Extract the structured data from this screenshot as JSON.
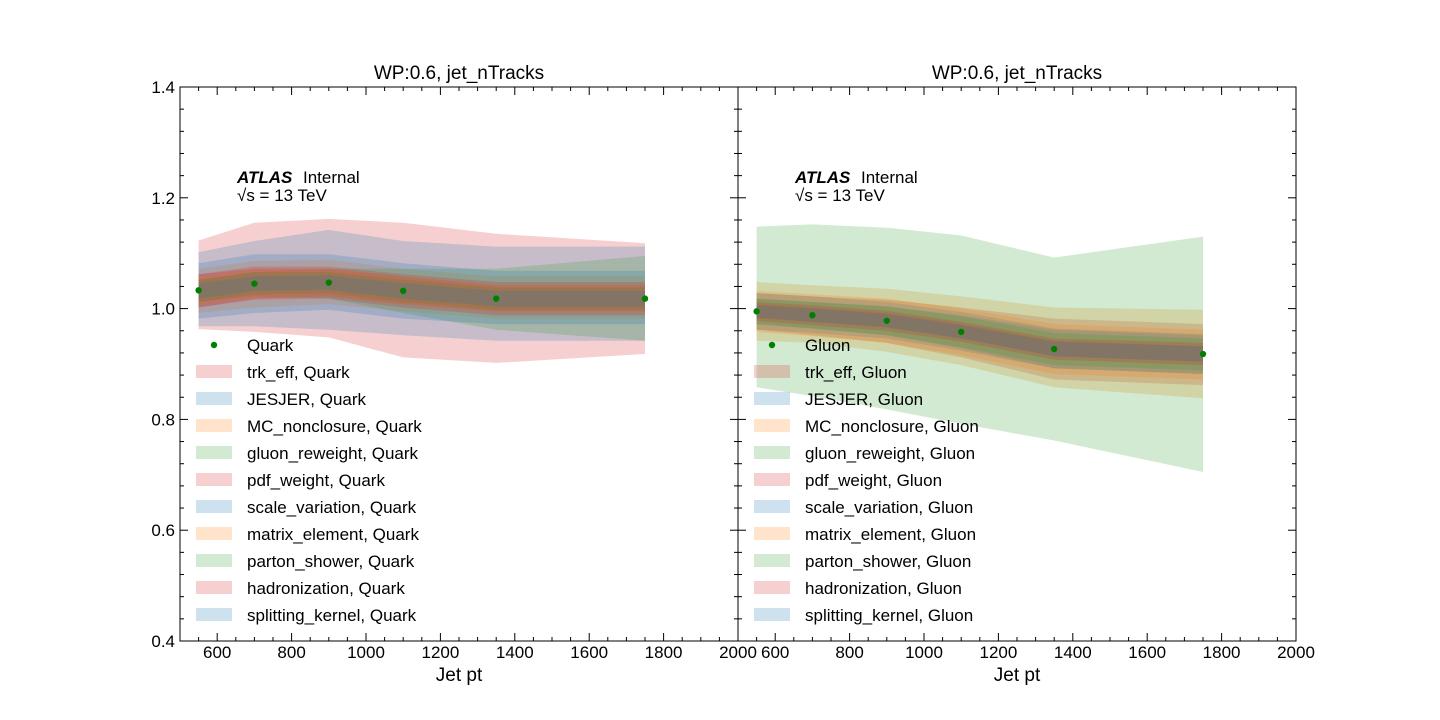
{
  "chart_data": [
    {
      "type": "area",
      "title": "WP:0.6, jet_nTracks",
      "xlabel": "Jet pt",
      "ylabel": "",
      "xlim": [
        500,
        2000
      ],
      "ylim": [
        0.4,
        1.4
      ],
      "xticks": [
        "600",
        "800",
        "1000",
        "1200",
        "1400",
        "1600",
        "1800",
        "2000"
      ],
      "yticks": [
        "0.4",
        "0.6",
        "0.8",
        "1.0",
        "1.2",
        "1.4"
      ],
      "grid": false,
      "legend": "center-left",
      "atlas_label": "ATLAS",
      "atlas_status": "Internal",
      "energy_label": "√s = 13 TeV",
      "x": [
        550,
        700,
        900,
        1100,
        1350,
        1750
      ],
      "nominal": {
        "name": "Quark",
        "color": "#008000",
        "values": [
          1.033,
          1.045,
          1.047,
          1.032,
          1.018,
          1.018
        ]
      },
      "bands": [
        {
          "name": "trk_eff, Quark",
          "color": "#d62728",
          "lower": [
            0.963,
            0.958,
            0.948,
            0.912,
            0.902,
            0.918
          ],
          "upper": [
            1.123,
            1.155,
            1.162,
            1.155,
            1.135,
            1.118
          ]
        },
        {
          "name": "JESJER, Quark",
          "color": "#1f77b4",
          "lower": [
            0.968,
            0.968,
            0.962,
            0.952,
            0.942,
            0.942
          ],
          "upper": [
            1.102,
            1.122,
            1.142,
            1.122,
            1.112,
            1.112
          ]
        },
        {
          "name": "MC_nonclosure, Quark",
          "color": "#ff7f0e",
          "lower": [
            0.992,
            1.002,
            1.008,
            0.995,
            0.982,
            0.982
          ],
          "upper": [
            1.072,
            1.086,
            1.088,
            1.072,
            1.058,
            1.058
          ]
        },
        {
          "name": "gluon_reweight, Quark",
          "color": "#2ca02c",
          "lower": [
            1.012,
            1.022,
            1.018,
            0.992,
            0.962,
            0.942
          ],
          "upper": [
            1.052,
            1.066,
            1.072,
            1.072,
            1.072,
            1.095
          ]
        },
        {
          "name": "pdf_weight, Quark",
          "color": "#d62728",
          "lower": [
            1.002,
            1.018,
            1.022,
            1.008,
            0.995,
            0.995
          ],
          "upper": [
            1.062,
            1.072,
            1.072,
            1.058,
            1.042,
            1.042
          ]
        },
        {
          "name": "scale_variation, Quark",
          "color": "#1f77b4",
          "lower": [
            0.982,
            0.992,
            0.998,
            0.982,
            0.972,
            0.972
          ],
          "upper": [
            1.082,
            1.098,
            1.098,
            1.082,
            1.068,
            1.068
          ]
        },
        {
          "name": "matrix_element, Quark",
          "color": "#ff7f0e",
          "lower": [
            1.008,
            1.018,
            1.022,
            1.008,
            0.995,
            0.995
          ],
          "upper": [
            1.058,
            1.072,
            1.072,
            1.058,
            1.042,
            1.042
          ]
        },
        {
          "name": "parton_shower, Quark",
          "color": "#2ca02c",
          "lower": [
            1.012,
            1.026,
            1.028,
            1.012,
            0.998,
            0.998
          ],
          "upper": [
            1.052,
            1.066,
            1.066,
            1.052,
            1.038,
            1.038
          ]
        },
        {
          "name": "hadronization, Quark",
          "color": "#d62728",
          "lower": [
            1.002,
            1.016,
            1.018,
            1.002,
            0.988,
            0.988
          ],
          "upper": [
            1.062,
            1.076,
            1.076,
            1.062,
            1.048,
            1.048
          ]
        },
        {
          "name": "splitting_kernel, Quark",
          "color": "#1f77b4",
          "lower": [
            1.018,
            1.032,
            1.034,
            1.018,
            1.004,
            1.004
          ],
          "upper": [
            1.046,
            1.058,
            1.06,
            1.046,
            1.032,
            1.032
          ]
        }
      ]
    },
    {
      "type": "area",
      "title": "WP:0.6, jet_nTracks",
      "xlabel": "Jet pt",
      "ylabel": "",
      "xlim": [
        500,
        2000
      ],
      "ylim": [
        0.4,
        1.4
      ],
      "xticks": [
        "600",
        "800",
        "1000",
        "1200",
        "1400",
        "1600",
        "1800",
        "2000"
      ],
      "yticks": [
        "0.4",
        "0.6",
        "0.8",
        "1.0",
        "1.2",
        "1.4"
      ],
      "grid": false,
      "legend": "center-left",
      "atlas_label": "ATLAS",
      "atlas_status": "Internal",
      "energy_label": "√s = 13 TeV",
      "x": [
        550,
        700,
        900,
        1100,
        1350,
        1750
      ],
      "nominal": {
        "name": "Gluon",
        "color": "#008000",
        "values": [
          0.995,
          0.988,
          0.978,
          0.958,
          0.927,
          0.918
        ]
      },
      "bands": [
        {
          "name": "trk_eff, Gluon",
          "color": "#d62728",
          "lower": [
            0.962,
            0.952,
            0.938,
            0.912,
            0.872,
            0.862
          ],
          "upper": [
            1.028,
            1.022,
            1.016,
            1.002,
            0.982,
            0.972
          ]
        },
        {
          "name": "JESJER, Gluon",
          "color": "#1f77b4",
          "lower": [
            0.972,
            0.964,
            0.952,
            0.928,
            0.892,
            0.882
          ],
          "upper": [
            1.018,
            1.012,
            1.004,
            0.988,
            0.962,
            0.952
          ]
        },
        {
          "name": "MC_nonclosure, Gluon",
          "color": "#ff7f0e",
          "lower": [
            0.942,
            0.938,
            0.922,
            0.898,
            0.858,
            0.838
          ],
          "upper": [
            1.048,
            1.042,
            1.036,
            1.022,
            1.002,
            0.998
          ]
        },
        {
          "name": "gluon_reweight, Gluon",
          "color": "#2ca02c",
          "lower": [
            0.858,
            0.842,
            0.818,
            0.792,
            0.762,
            0.705
          ],
          "upper": [
            1.148,
            1.152,
            1.146,
            1.132,
            1.092,
            1.13
          ]
        },
        {
          "name": "pdf_weight, Gluon",
          "color": "#d62728",
          "lower": [
            0.982,
            0.976,
            0.966,
            0.946,
            0.914,
            0.904
          ],
          "upper": [
            1.008,
            1.002,
            0.992,
            0.972,
            0.942,
            0.932
          ]
        },
        {
          "name": "scale_variation, Gluon",
          "color": "#1f77b4",
          "lower": [
            0.962,
            0.956,
            0.946,
            0.924,
            0.892,
            0.882
          ],
          "upper": [
            1.028,
            1.022,
            1.012,
            0.994,
            0.964,
            0.954
          ]
        },
        {
          "name": "matrix_element, Gluon",
          "color": "#ff7f0e",
          "lower": [
            0.958,
            0.95,
            0.938,
            0.916,
            0.882,
            0.872
          ],
          "upper": [
            1.032,
            1.026,
            1.018,
            1.0,
            0.972,
            0.962
          ]
        },
        {
          "name": "parton_shower, Gluon",
          "color": "#2ca02c",
          "lower": [
            0.972,
            0.964,
            0.952,
            0.93,
            0.898,
            0.888
          ],
          "upper": [
            1.018,
            1.012,
            1.004,
            0.986,
            0.956,
            0.946
          ]
        },
        {
          "name": "hadronization, Gluon",
          "color": "#d62728",
          "lower": [
            0.978,
            0.97,
            0.96,
            0.94,
            0.908,
            0.898
          ],
          "upper": [
            1.012,
            1.006,
            0.996,
            0.976,
            0.946,
            0.938
          ]
        },
        {
          "name": "splitting_kernel, Gluon",
          "color": "#1f77b4",
          "lower": [
            0.984,
            0.976,
            0.966,
            0.946,
            0.914,
            0.904
          ],
          "upper": [
            1.006,
            1.0,
            0.99,
            0.97,
            0.94,
            0.932
          ]
        }
      ]
    }
  ]
}
